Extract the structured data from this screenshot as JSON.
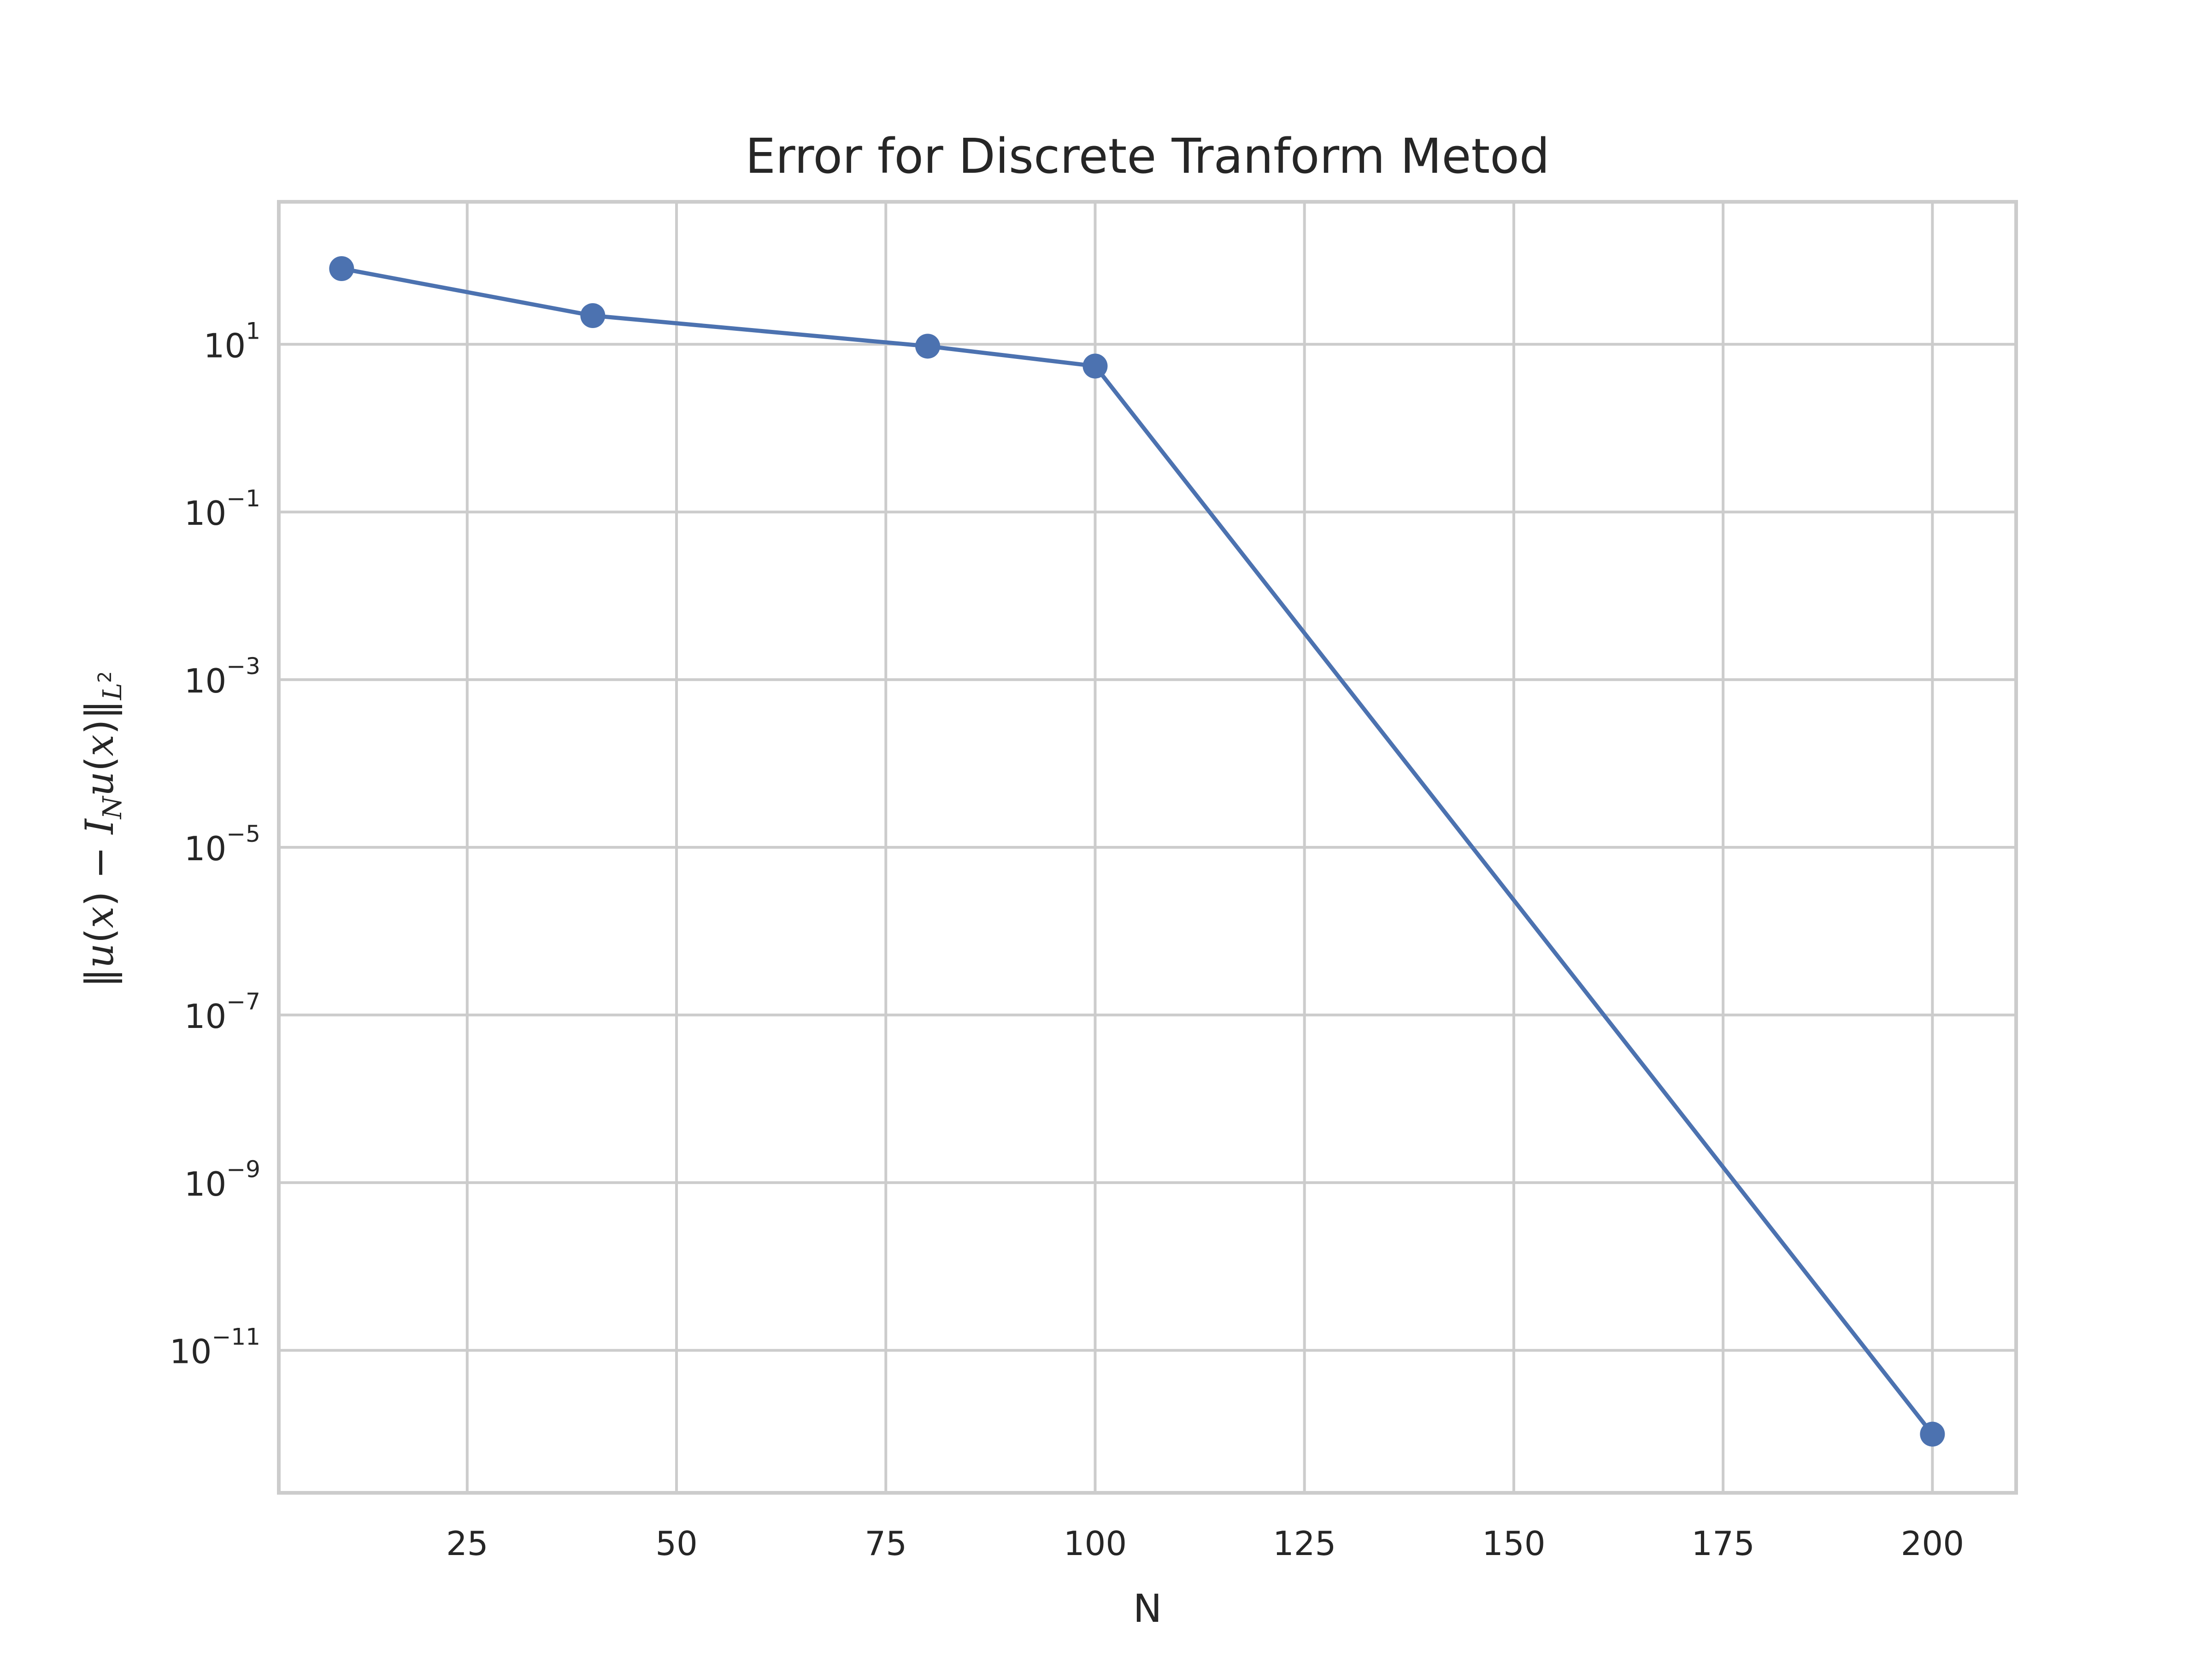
{
  "chart_data": {
    "type": "line",
    "title": "Error for Discrete Tranform Metod",
    "xlabel": "N",
    "ylabel": "‖u(x) − I_N u(x)‖_{L²}",
    "yscale": "log",
    "x": [
      10,
      40,
      80,
      100,
      200
    ],
    "series": [
      {
        "values": [
          80,
          22,
          9.5,
          5.5,
          1e-12
        ],
        "color": "#4c72b0",
        "marker": "circle"
      }
    ],
    "xlim": [
      2.5,
      210
    ],
    "ylim_log10": [
      -12.7,
      2.7
    ],
    "x_ticks": [
      25,
      50,
      75,
      100,
      125,
      150,
      175,
      200
    ],
    "x_tick_labels": [
      "25",
      "50",
      "75",
      "100",
      "125",
      "150",
      "175",
      "200"
    ],
    "y_ticks_exponents": [
      1,
      -1,
      -3,
      -5,
      -7,
      -9,
      -11
    ],
    "y_tick_base": "10",
    "y_tick_exp_labels": [
      "1",
      "−1",
      "−3",
      "−5",
      "−7",
      "−9",
      "−11"
    ],
    "grid": true,
    "colors": {
      "line": "#4c72b0",
      "grid": "#cccccc",
      "spine": "#cccccc",
      "text": "#262626"
    }
  }
}
